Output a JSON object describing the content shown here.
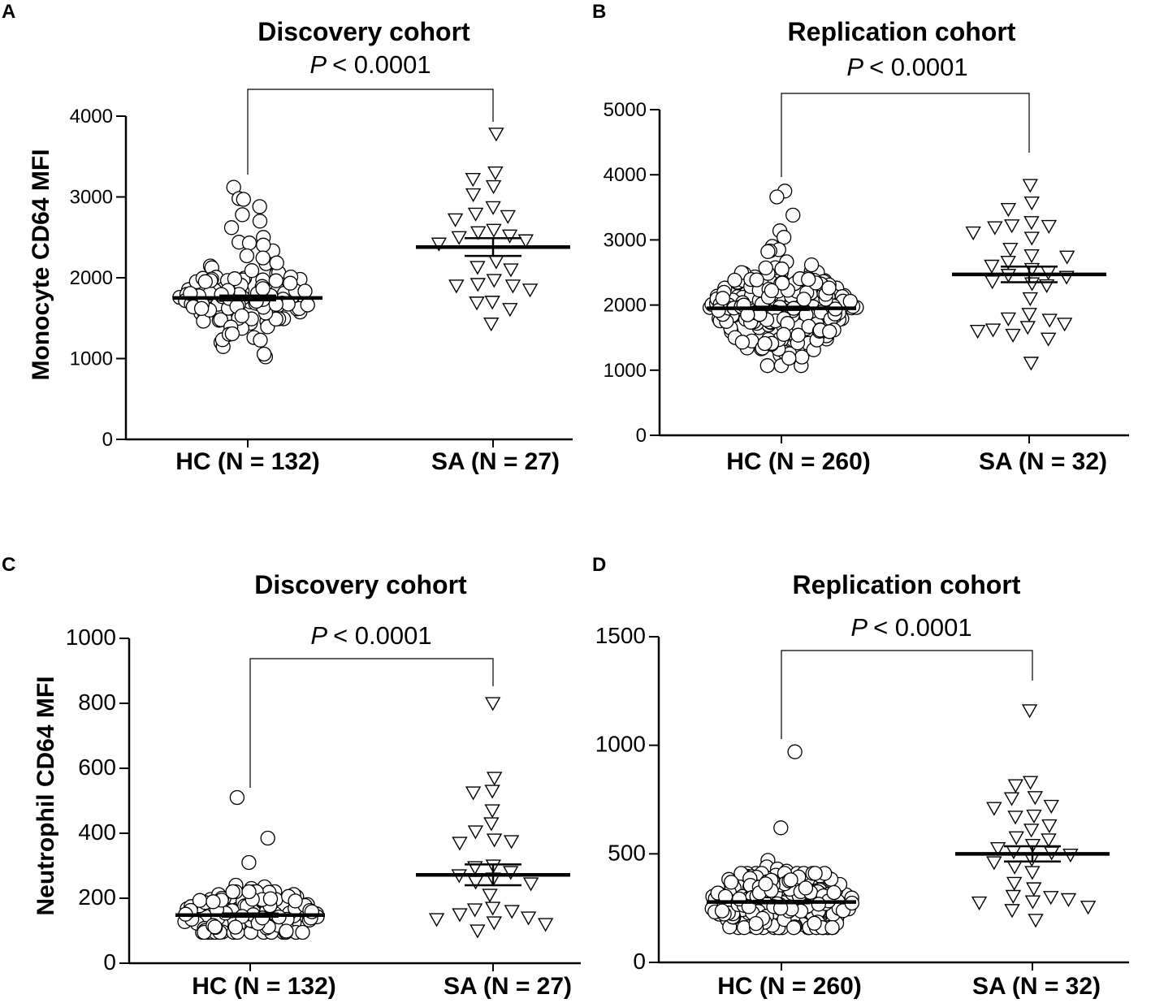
{
  "figure": {
    "y_labels": {
      "top_row": "Monocyte CD64 MFI",
      "bottom_row": "Neutrophil CD64 MFI"
    },
    "marker_legend": {
      "HC": "circle",
      "SA": "triangle-down"
    }
  },
  "chart_data": [
    {
      "type": "scatter",
      "panel": "A",
      "title": "Discovery cohort",
      "p_label": "P",
      "p_value": "< 0.0001",
      "ylabel": "Monocyte CD64 MFI",
      "xlabel": "",
      "ylim": [
        0,
        4000
      ],
      "yticks": [
        "0",
        "1000",
        "2000",
        "3000",
        "4000"
      ],
      "categories": [
        "HC (N = 132)",
        "SA (N = 27)"
      ],
      "series": [
        {
          "name": "HC",
          "marker": "circle",
          "n": 132,
          "mean": 1750,
          "sem": 30,
          "max": 3120,
          "min": 940,
          "outliers": [
            3120,
            2980,
            2970,
            2880,
            2780,
            2700,
            2620,
            2500,
            2440
          ]
        },
        {
          "name": "SA",
          "marker": "triangle-down",
          "n": 27,
          "mean": 2380,
          "sem": 110,
          "values": [
            3780,
            3300,
            3220,
            3130,
            3030,
            2870,
            2790,
            2760,
            2720,
            2590,
            2560,
            2520,
            2500,
            2460,
            2420,
            2200,
            2130,
            2100,
            1970,
            1920,
            1900,
            1900,
            1850,
            1700,
            1690,
            1610,
            1430
          ]
        }
      ]
    },
    {
      "type": "scatter",
      "panel": "B",
      "title": "Replication cohort",
      "p_label": "P",
      "p_value": "< 0.0001",
      "ylabel": "",
      "xlabel": "",
      "ylim": [
        0,
        5000
      ],
      "yticks": [
        "0",
        "1000",
        "2000",
        "3000",
        "4000",
        "5000"
      ],
      "categories": [
        "HC (N = 260)",
        "SA (N = 32)"
      ],
      "series": [
        {
          "name": "HC",
          "marker": "circle",
          "n": 260,
          "mean": 1950,
          "sem": 25,
          "max": 3750,
          "min": 1070,
          "outliers": [
            3750,
            3660,
            3380,
            3140,
            3040,
            2900,
            2850,
            2830
          ]
        },
        {
          "name": "SA",
          "marker": "triangle-down",
          "n": 32,
          "mean": 2470,
          "sem": 120,
          "values": [
            3840,
            3570,
            3470,
            3270,
            3220,
            3210,
            3190,
            3110,
            3030,
            2860,
            2760,
            2740,
            2660,
            2600,
            2550,
            2500,
            2460,
            2430,
            2360,
            2330,
            2300,
            2100,
            1860,
            1790,
            1770,
            1710,
            1660,
            1620,
            1600,
            1540,
            1480,
            1110
          ]
        }
      ]
    },
    {
      "type": "scatter",
      "panel": "C",
      "title": "Discovery cohort",
      "p_label": "P",
      "p_value": "< 0.0001",
      "ylabel": "Neutrophil CD64 MFI",
      "xlabel": "",
      "ylim": [
        0,
        1000
      ],
      "yticks": [
        "0",
        "200",
        "400",
        "600",
        "800",
        "1000"
      ],
      "categories": [
        "HC (N = 132)",
        "SA (N = 27)"
      ],
      "series": [
        {
          "name": "HC",
          "marker": "circle",
          "n": 132,
          "mean": 148,
          "sem": 5,
          "max": 510,
          "min": 95,
          "outliers": [
            510,
            385,
            310,
            240,
            235,
            230
          ]
        },
        {
          "name": "SA",
          "marker": "triangle-down",
          "n": 27,
          "mean": 272,
          "sem": 32,
          "values": [
            800,
            570,
            530,
            525,
            470,
            430,
            405,
            380,
            375,
            370,
            300,
            295,
            280,
            270,
            260,
            250,
            245,
            210,
            170,
            165,
            160,
            150,
            140,
            135,
            125,
            120,
            100
          ]
        }
      ]
    },
    {
      "type": "scatter",
      "panel": "D",
      "title": "Replication cohort",
      "p_label": "P",
      "p_value": "< 0.0001",
      "ylabel": "",
      "xlabel": "",
      "ylim": [
        0,
        1500
      ],
      "yticks": [
        "0",
        "500",
        "1000",
        "1500"
      ],
      "categories": [
        "HC (N = 260)",
        "SA (N = 32)"
      ],
      "series": [
        {
          "name": "HC",
          "marker": "circle",
          "n": 260,
          "mean": 278,
          "sem": 6,
          "max": 970,
          "min": 160,
          "outliers": [
            970,
            620,
            470,
            440,
            430,
            420
          ]
        },
        {
          "name": "SA",
          "marker": "triangle-down",
          "n": 32,
          "mean": 500,
          "sem": 35,
          "values": [
            1160,
            830,
            815,
            760,
            755,
            720,
            710,
            675,
            670,
            630,
            610,
            575,
            565,
            540,
            525,
            510,
            505,
            495,
            475,
            460,
            440,
            415,
            365,
            340,
            305,
            300,
            290,
            280,
            275,
            255,
            240,
            195
          ]
        }
      ]
    }
  ]
}
